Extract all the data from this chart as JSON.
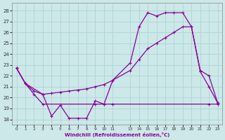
{
  "xlabel": "Windchill (Refroidissement éolien,°C)",
  "background_color": "#cce8e8",
  "grid_color": "#aad0d0",
  "line_color": "#880099",
  "ylim": [
    17.5,
    28.7
  ],
  "xlim": [
    -0.5,
    23.5
  ],
  "yticks": [
    18,
    19,
    20,
    21,
    22,
    23,
    24,
    25,
    26,
    27,
    28
  ],
  "xticks": [
    0,
    1,
    2,
    3,
    4,
    5,
    6,
    7,
    8,
    9,
    10,
    11,
    13,
    14,
    15,
    16,
    17,
    18,
    19,
    20,
    21,
    22,
    23
  ],
  "xlabels": [
    "0",
    "1",
    "2",
    "3",
    "4",
    "5",
    "6",
    "7",
    "8",
    "9",
    "10",
    "11",
    "13",
    "14",
    "15",
    "16",
    "17",
    "18",
    "19",
    "20",
    "21",
    "22",
    "23"
  ],
  "s1_x": [
    0,
    1,
    3,
    4,
    5,
    6,
    7,
    8,
    9,
    10,
    11,
    13,
    14,
    15,
    16,
    17,
    18,
    19,
    20,
    21,
    22,
    23
  ],
  "s1_y": [
    22.7,
    21.3,
    20.3,
    18.3,
    19.3,
    18.1,
    18.1,
    18.1,
    19.7,
    19.4,
    21.6,
    23.2,
    26.5,
    27.8,
    27.5,
    27.8,
    27.8,
    27.8,
    26.5,
    22.4,
    21.0,
    19.5
  ],
  "s2_x": [
    0,
    1,
    2,
    3,
    4,
    5,
    6,
    7,
    8,
    9,
    10,
    11,
    13,
    14,
    15,
    16,
    17,
    18,
    19,
    20,
    21,
    22,
    23
  ],
  "s2_y": [
    22.7,
    21.3,
    20.6,
    20.3,
    20.4,
    20.5,
    20.6,
    20.7,
    20.8,
    21.0,
    21.2,
    21.6,
    22.5,
    23.5,
    24.5,
    25.0,
    25.5,
    26.0,
    26.5,
    26.5,
    22.5,
    22.0,
    19.5
  ],
  "s3_x": [
    0,
    1,
    2,
    3,
    9,
    10,
    11,
    22,
    23
  ],
  "s3_y": [
    22.7,
    21.3,
    20.3,
    19.4,
    19.4,
    19.4,
    19.4,
    19.4,
    19.4
  ]
}
